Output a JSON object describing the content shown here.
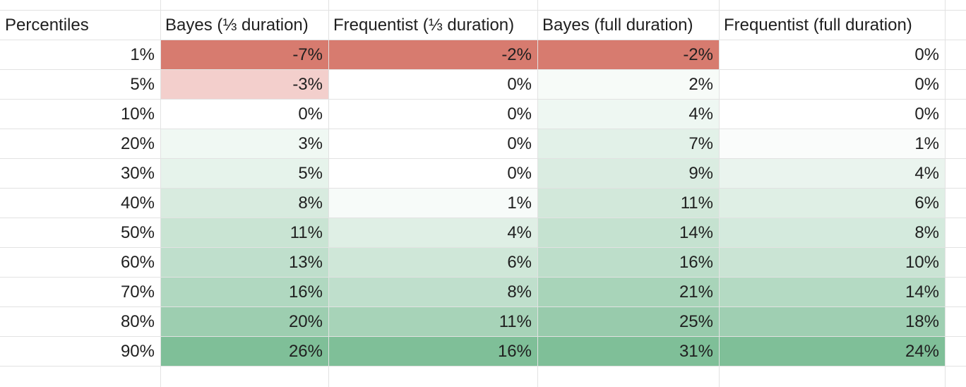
{
  "chart_data": {
    "type": "table",
    "columns": [
      "Percentiles",
      "Bayes (⅓ duration)",
      "Frequentist (⅓ duration)",
      "Bayes (full duration)",
      "Frequentist (full duration)"
    ],
    "rows": [
      {
        "percentile": "1%",
        "values": [
          "-7%",
          "-2%",
          "-2%",
          "0%"
        ]
      },
      {
        "percentile": "5%",
        "values": [
          "-3%",
          "0%",
          "2%",
          "0%"
        ]
      },
      {
        "percentile": "10%",
        "values": [
          "0%",
          "0%",
          "4%",
          "0%"
        ]
      },
      {
        "percentile": "20%",
        "values": [
          "3%",
          "0%",
          "7%",
          "1%"
        ]
      },
      {
        "percentile": "30%",
        "values": [
          "5%",
          "0%",
          "9%",
          "4%"
        ]
      },
      {
        "percentile": "40%",
        "values": [
          "8%",
          "1%",
          "11%",
          "6%"
        ]
      },
      {
        "percentile": "50%",
        "values": [
          "11%",
          "4%",
          "14%",
          "8%"
        ]
      },
      {
        "percentile": "60%",
        "values": [
          "13%",
          "6%",
          "16%",
          "10%"
        ]
      },
      {
        "percentile": "70%",
        "values": [
          "16%",
          "8%",
          "21%",
          "14%"
        ]
      },
      {
        "percentile": "80%",
        "values": [
          "20%",
          "11%",
          "25%",
          "18%"
        ]
      },
      {
        "percentile": "90%",
        "values": [
          "26%",
          "16%",
          "31%",
          "24%"
        ]
      }
    ],
    "color_scale": {
      "negative_max": "#d77b6f",
      "negative_light": "#f3cfcc",
      "zero": "#ffffff",
      "positive_max": "#7fbf98"
    }
  }
}
